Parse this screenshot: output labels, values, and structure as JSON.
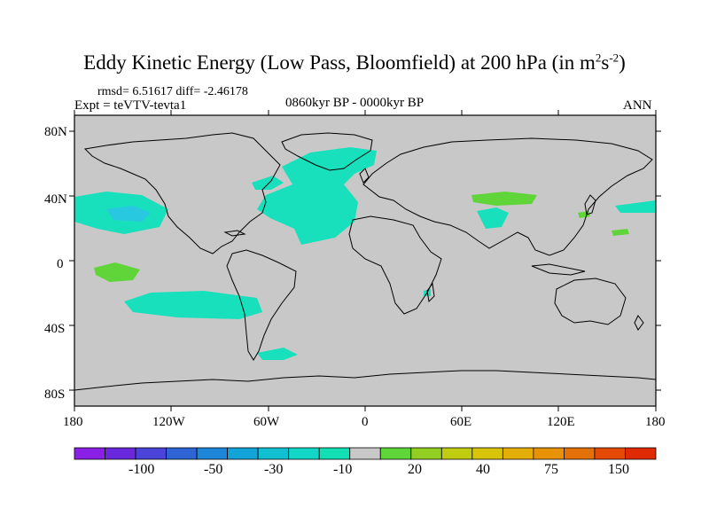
{
  "title": {
    "main": "Eddy Kinetic Energy (Low Pass, Bloomfield) at 200 hPa (in m",
    "sup1": "2",
    "mid": "s",
    "sup2": "-2",
    "end": ")"
  },
  "stats": {
    "rmsd": "rmsd= 6.51617 diff= -2.46178",
    "expt": "Expt = teVTV-tevta1",
    "period": "0860kyr BP - 0000kyr BP",
    "season": "ANN"
  },
  "axes": {
    "y_ticks": [
      "80N",
      "40N",
      "0",
      "40S",
      "80S"
    ],
    "x_ticks": [
      "180",
      "120W",
      "60W",
      "0",
      "60E",
      "120E",
      "180"
    ]
  },
  "colorbar": {
    "colors": [
      "#8a1fe6",
      "#6a28dc",
      "#4a44d8",
      "#2f64d4",
      "#1e86d8",
      "#12a4d8",
      "#10c0d0",
      "#12d6c6",
      "#12e0b4",
      "#c8c8c8",
      "#5fd53a",
      "#92cf22",
      "#c0cc10",
      "#d8c40a",
      "#e4ae08",
      "#e89208",
      "#e47008",
      "#e44a06",
      "#e02a04"
    ],
    "labels": [
      "-100",
      "-50",
      "-30",
      "-10",
      "20",
      "40",
      "75",
      "150"
    ]
  },
  "map": {
    "ocean_color": "#c8c8c8",
    "anomaly_neg_color": "#18e0bc",
    "anomaly_neg_strong_color": "#28c8e0",
    "anomaly_pos_color": "#5fd53a"
  }
}
